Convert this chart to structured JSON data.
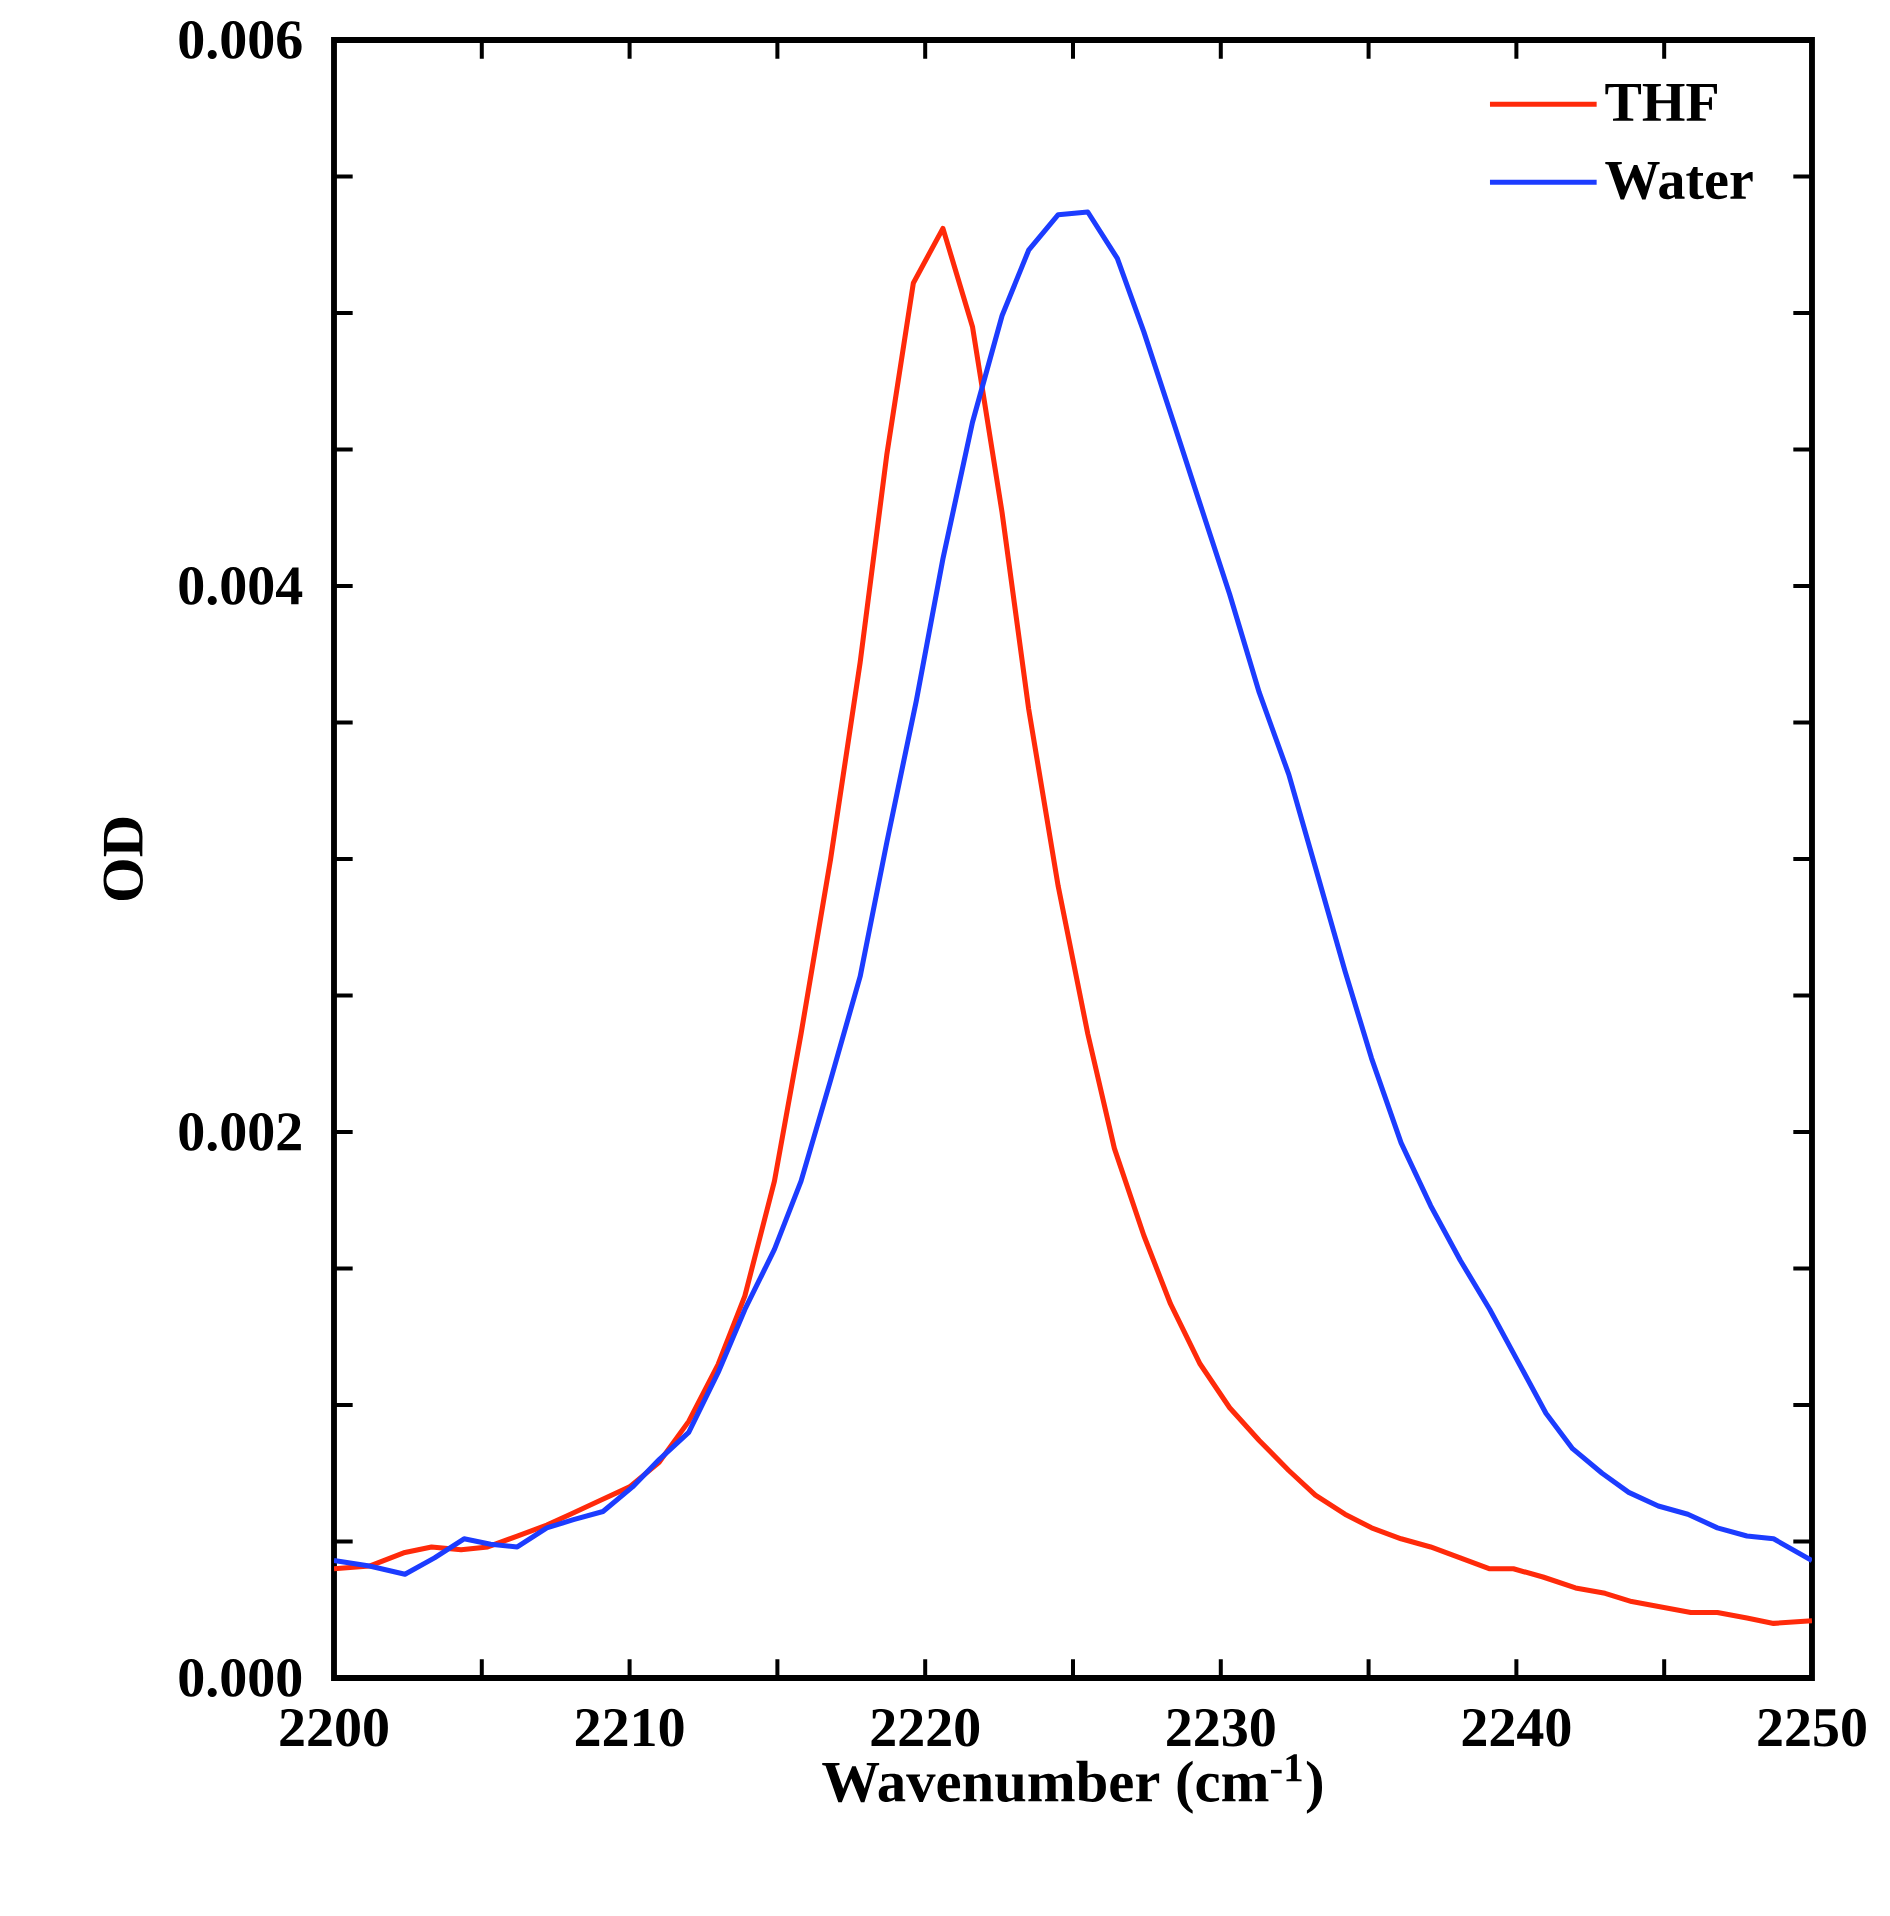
{
  "chart_data": {
    "type": "line",
    "xlabel": "Wavenumber (cm$^{-1}$)",
    "ylabel": "OD",
    "xlim": [
      2200,
      2250
    ],
    "xticks": [
      2200,
      {
        "value": 2205,
        "label": null
      },
      2210,
      {
        "value": 2215,
        "label": null
      },
      2220,
      {
        "value": 2225,
        "label": null
      },
      2230,
      {
        "value": 2235,
        "label": null
      },
      2240,
      {
        "value": 2245,
        "label": null
      },
      2250
    ],
    "ylim": [
      0,
      0.006
    ],
    "yticks": [
      {
        "value": 0,
        "label": "0.000"
      },
      {
        "value": 0.0005,
        "label": null
      },
      {
        "value": 0.001,
        "label": null
      },
      {
        "value": 0.0015,
        "label": null
      },
      {
        "value": 0.002,
        "label": "0.002"
      },
      {
        "value": 0.0025,
        "label": null
      },
      {
        "value": 0.003,
        "label": null
      },
      {
        "value": 0.0035,
        "label": null
      },
      {
        "value": 0.004,
        "label": "0.004"
      },
      {
        "value": 0.0045,
        "label": null
      },
      {
        "value": 0.005,
        "label": null
      },
      {
        "value": 0.0055,
        "label": null
      },
      {
        "value": 0.006,
        "label": "0.006"
      }
    ],
    "grid": false,
    "legend": "top right",
    "marker": "none",
    "line_style": "solid",
    "series": [
      {
        "name": "THF",
        "color": "#ff2a0a",
        "x": [
          2200.0,
          2201.2,
          2202.4,
          2203.3,
          2204.3,
          2205.2,
          2206.2,
          2207.2,
          2208.0,
          2209.0,
          2210.0,
          2211.0,
          2212.0,
          2213.0,
          2213.9,
          2214.9,
          2215.8,
          2216.8,
          2217.8,
          2218.7,
          2219.6,
          2220.6,
          2221.6,
          2222.6,
          2223.5,
          2224.5,
          2225.5,
          2226.4,
          2227.4,
          2228.3,
          2229.3,
          2230.3,
          2231.3,
          2232.3,
          2233.2,
          2234.2,
          2235.1,
          2236.1,
          2237.1,
          2238.1,
          2239.1,
          2239.9,
          2240.9,
          2242.0,
          2243.0,
          2243.9,
          2244.9,
          2245.9,
          2246.8,
          2247.8,
          2248.7,
          2250.0
        ],
        "values": [
          0.0004,
          0.00041,
          0.00046,
          0.00048,
          0.00047,
          0.00048,
          0.00052,
          0.00056,
          0.0006,
          0.00065,
          0.0007,
          0.00079,
          0.00094,
          0.00115,
          0.0014,
          0.00182,
          0.00236,
          0.003,
          0.00372,
          0.00448,
          0.00511,
          0.00531,
          0.00495,
          0.00427,
          0.00355,
          0.0029,
          0.00236,
          0.00194,
          0.00162,
          0.00137,
          0.00115,
          0.00099,
          0.00087,
          0.00076,
          0.00067,
          0.0006,
          0.00055,
          0.00051,
          0.00048,
          0.00044,
          0.0004,
          0.0004,
          0.00037,
          0.00033,
          0.00031,
          0.00028,
          0.00026,
          0.00024,
          0.00024,
          0.00022,
          0.0002,
          0.00021
        ]
      },
      {
        "name": "Water",
        "color": "#1c3cff",
        "x": [
          2200.0,
          2201.2,
          2202.4,
          2203.4,
          2204.4,
          2205.3,
          2206.2,
          2207.2,
          2208.1,
          2209.1,
          2210.1,
          2211.0,
          2212.0,
          2213.0,
          2213.9,
          2214.9,
          2215.8,
          2216.8,
          2217.8,
          2218.7,
          2219.7,
          2220.6,
          2221.6,
          2222.6,
          2223.5,
          2224.5,
          2225.5,
          2226.5,
          2227.4,
          2228.4,
          2229.3,
          2230.3,
          2231.3,
          2232.3,
          2233.2,
          2234.2,
          2235.1,
          2236.1,
          2237.1,
          2238.1,
          2239.1,
          2240.0,
          2241.0,
          2241.9,
          2242.9,
          2243.8,
          2244.8,
          2245.8,
          2246.8,
          2247.8,
          2248.7,
          2250.0
        ],
        "values": [
          0.00043,
          0.00041,
          0.00038,
          0.00044,
          0.00051,
          0.00049,
          0.00048,
          0.00055,
          0.00058,
          0.00061,
          0.0007,
          0.0008,
          0.0009,
          0.00112,
          0.00135,
          0.00157,
          0.00182,
          0.00219,
          0.00257,
          0.00306,
          0.00358,
          0.0041,
          0.0046,
          0.00499,
          0.00523,
          0.00536,
          0.00537,
          0.0052,
          0.00493,
          0.0046,
          0.0043,
          0.00397,
          0.00361,
          0.00331,
          0.00297,
          0.00259,
          0.00227,
          0.00196,
          0.00173,
          0.00153,
          0.00135,
          0.00117,
          0.00097,
          0.00084,
          0.00075,
          0.00068,
          0.00063,
          0.0006,
          0.00055,
          0.00052,
          0.00051,
          0.00043
        ]
      }
    ]
  }
}
